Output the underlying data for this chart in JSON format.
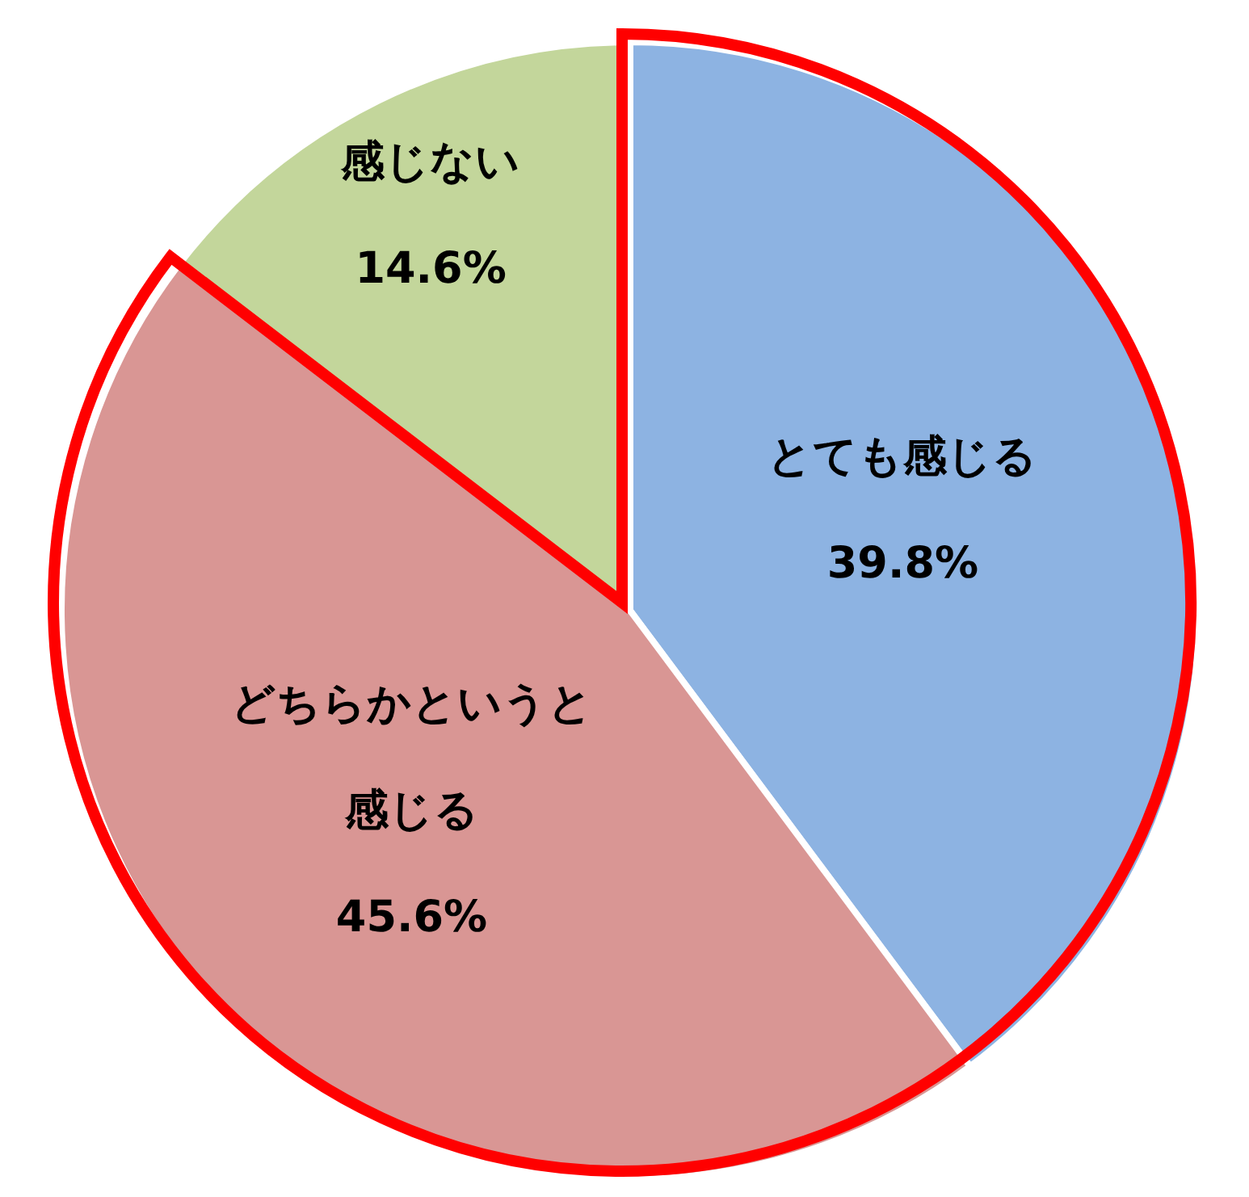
{
  "chart_data": {
    "type": "pie",
    "categories": [
      "とても感じる",
      "どちらかというと感じる",
      "感じない"
    ],
    "values": [
      39.8,
      45.6,
      14.6
    ],
    "value_labels": [
      "39.8%",
      "45.6%",
      "14.6%"
    ],
    "colors": [
      "#8db3e2",
      "#d99694",
      "#c3d69b"
    ],
    "legend": false
  }
}
